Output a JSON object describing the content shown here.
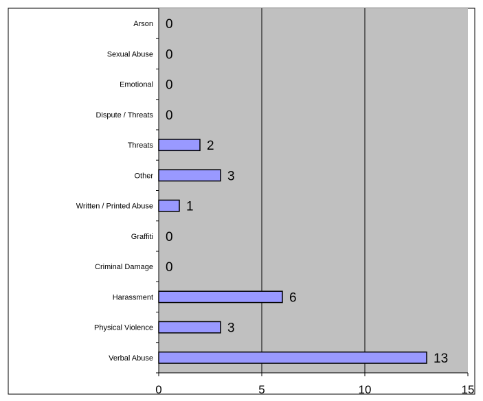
{
  "chart_data": {
    "type": "bar",
    "orientation": "horizontal",
    "categories": [
      "Arson",
      "Sexual Abuse",
      "Emotional",
      "Dispute / Threats",
      "Threats",
      "Other",
      "Written / Printed Abuse",
      "Graffiti",
      "Criminal Damage",
      "Harassment",
      "Physical Violence",
      "Verbal Abuse"
    ],
    "values": [
      0,
      0,
      0,
      0,
      2,
      3,
      1,
      0,
      0,
      6,
      3,
      13
    ],
    "data_labels": [
      "0",
      "0",
      "0",
      "0",
      "2",
      "3",
      "1",
      "0",
      "0",
      "6",
      "3",
      "13"
    ],
    "xlim": [
      0,
      15
    ],
    "x_ticks": [
      0,
      5,
      10,
      15
    ],
    "x_tick_labels": [
      "0",
      "5",
      "10",
      "15"
    ],
    "grid": true,
    "legend": "none",
    "colors": {
      "bar_fill": "#9999ff",
      "bar_stroke": "#000000",
      "plot_background": "#c0c0c0",
      "gridline": "#000000"
    }
  }
}
